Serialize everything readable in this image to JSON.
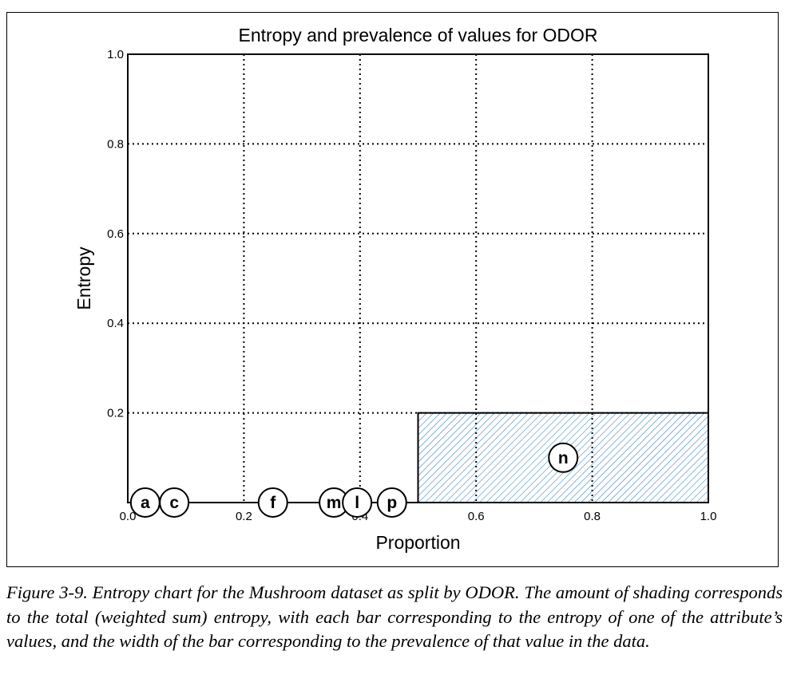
{
  "chart_data": {
    "type": "bar",
    "title": "Entropy and prevalence of values for ODOR",
    "xlabel": "Proportion",
    "ylabel": "Entropy",
    "xlim": [
      0.0,
      1.0
    ],
    "ylim": [
      0.0,
      1.0
    ],
    "xticks": [
      "0.0",
      "0.2",
      "0.4",
      "0.6",
      "0.8",
      "1.0"
    ],
    "yticks": [
      "0.2",
      "0.4",
      "0.6",
      "0.8",
      "1.0"
    ],
    "grid": true,
    "bars": [
      {
        "x0": 0.5,
        "x1": 1.0,
        "height": 0.2,
        "hatch": "diagonal",
        "color": "#1f77b4"
      }
    ],
    "points": [
      {
        "label": "a",
        "x": 0.03,
        "y": 0.0
      },
      {
        "label": "c",
        "x": 0.08,
        "y": 0.0
      },
      {
        "label": "f",
        "x": 0.25,
        "y": 0.0
      },
      {
        "label": "m",
        "x": 0.355,
        "y": 0.0
      },
      {
        "label": "l",
        "x": 0.395,
        "y": 0.0
      },
      {
        "label": "p",
        "x": 0.455,
        "y": 0.0
      },
      {
        "label": "n",
        "x": 0.75,
        "y": 0.1
      }
    ]
  },
  "caption": "Figure 3-9. Entropy chart for the Mushroom dataset as split by ODOR. The amount of shading corresponds to the total (weighted sum) entropy, with each bar corresponding to the entropy of one of the attribute’s values, and the width of the bar corresponding to the prevalence of that value in the data."
}
